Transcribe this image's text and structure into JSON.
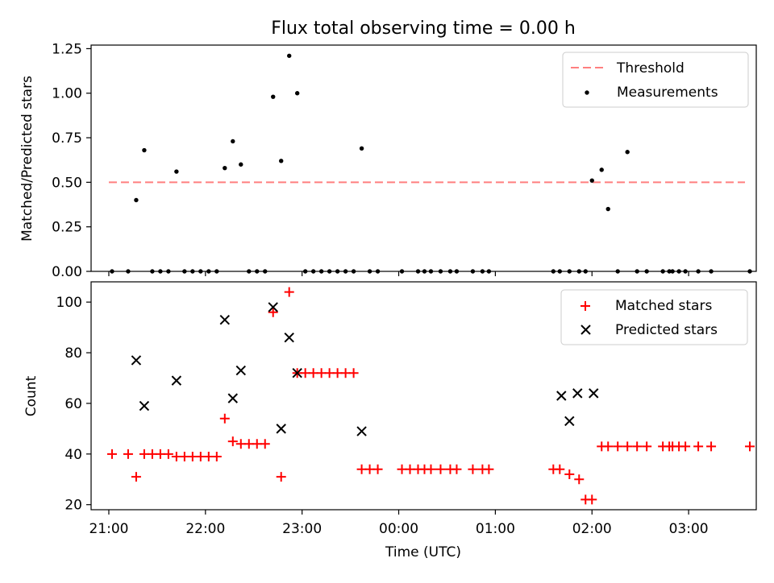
{
  "title": "Flux total observing time = 0.00 h",
  "colors": {
    "threshold": "#ff7f7f",
    "measurement": "#000000",
    "matched": "#ff0000",
    "predicted": "#000000"
  },
  "chart_data": [
    {
      "type": "scatter",
      "title": "Flux total observing time = 0.00 h",
      "xlabel": "",
      "ylabel": "Matched/Predicted stars",
      "xlim": [
        "20:49",
        "03:42"
      ],
      "ylim": [
        0,
        1.27
      ],
      "yticks": [
        "0.00",
        "0.25",
        "0.50",
        "0.75",
        "1.00",
        "1.25"
      ],
      "ytick_values": [
        0,
        0.25,
        0.5,
        0.75,
        1.0,
        1.25
      ],
      "legend_position": "top-right",
      "series": [
        {
          "name": "Threshold",
          "style": "dashed-line",
          "x": [
            "21:00",
            "03:35"
          ],
          "y": [
            0.5,
            0.5
          ]
        },
        {
          "name": "Measurements",
          "style": "dot",
          "x": [
            "21:02",
            "21:12",
            "21:17",
            "21:22",
            "21:27",
            "21:32",
            "21:37",
            "21:42",
            "21:47",
            "21:52",
            "21:57",
            "22:02",
            "22:07",
            "22:12",
            "22:17",
            "22:22",
            "22:27",
            "22:32",
            "22:37",
            "22:42",
            "22:47",
            "22:52",
            "22:57",
            "23:02",
            "23:07",
            "23:12",
            "23:17",
            "23:22",
            "23:27",
            "23:32",
            "23:37",
            "23:42",
            "23:47",
            "24:02",
            "24:12",
            "24:16",
            "24:20",
            "24:26",
            "24:32",
            "24:36",
            "24:46",
            "24:52",
            "24:56",
            "25:36",
            "25:40",
            "25:46",
            "25:52",
            "25:56",
            "26:00",
            "26:06",
            "26:10",
            "26:16",
            "26:22",
            "26:28",
            "26:34",
            "26:44",
            "26:48",
            "26:50",
            "26:54",
            "26:58",
            "27:06",
            "27:14",
            "27:38"
          ],
          "y": [
            0,
            0,
            0.4,
            0.68,
            0,
            0,
            0,
            0.56,
            0,
            0,
            0,
            0,
            0,
            0.58,
            0.73,
            0.6,
            0,
            0,
            0,
            0.98,
            0.62,
            1.21,
            1.0,
            0,
            0,
            0,
            0,
            0,
            0,
            0,
            0.69,
            0,
            0,
            0,
            0,
            0,
            0,
            0,
            0,
            0,
            0,
            0,
            0,
            0,
            0,
            0,
            0,
            0,
            0.51,
            0.57,
            0.35,
            0,
            0.67,
            0,
            0,
            0,
            0,
            0,
            0,
            0,
            0,
            0,
            0
          ]
        }
      ]
    },
    {
      "type": "scatter",
      "xlabel": "Time (UTC)",
      "ylabel": "Count",
      "xlim": [
        "20:49",
        "03:42"
      ],
      "xticks": [
        "21:00",
        "22:00",
        "23:00",
        "00:00",
        "01:00",
        "02:00",
        "03:00"
      ],
      "ylim": [
        18,
        108
      ],
      "yticks": [
        "20",
        "40",
        "60",
        "80",
        "100"
      ],
      "ytick_values": [
        20,
        40,
        60,
        80,
        100
      ],
      "legend_position": "top-right",
      "series": [
        {
          "name": "Matched stars",
          "marker": "+",
          "x": [
            "21:02",
            "21:12",
            "21:17",
            "21:22",
            "21:27",
            "21:32",
            "21:37",
            "21:42",
            "21:47",
            "21:52",
            "21:57",
            "22:02",
            "22:07",
            "22:12",
            "22:17",
            "22:22",
            "22:27",
            "22:32",
            "22:37",
            "22:42",
            "22:47",
            "22:52",
            "22:57",
            "23:02",
            "23:07",
            "23:12",
            "23:17",
            "23:22",
            "23:27",
            "23:32",
            "23:37",
            "23:42",
            "23:47",
            "24:02",
            "24:07",
            "24:12",
            "24:16",
            "24:20",
            "24:26",
            "24:32",
            "24:36",
            "24:46",
            "24:52",
            "24:56",
            "25:36",
            "25:40",
            "25:46",
            "25:52",
            "25:56",
            "26:00",
            "26:06",
            "26:10",
            "26:16",
            "26:22",
            "26:28",
            "26:34",
            "26:44",
            "26:48",
            "26:50",
            "26:54",
            "26:58",
            "27:06",
            "27:14",
            "27:38"
          ],
          "y": [
            40,
            40,
            31,
            40,
            40,
            40,
            40,
            39,
            39,
            39,
            39,
            39,
            39,
            54,
            45,
            44,
            44,
            44,
            44,
            96,
            31,
            104,
            72,
            72,
            72,
            72,
            72,
            72,
            72,
            72,
            34,
            34,
            34,
            34,
            34,
            34,
            34,
            34,
            34,
            34,
            34,
            34,
            34,
            34,
            34,
            34,
            32,
            30,
            22,
            22,
            43,
            43,
            43,
            43,
            43,
            43,
            43,
            43,
            43,
            43,
            43,
            43,
            43,
            43
          ]
        },
        {
          "name": "Predicted stars",
          "marker": "x",
          "x": [
            "21:17",
            "21:22",
            "21:42",
            "22:12",
            "22:17",
            "22:22",
            "22:42",
            "22:47",
            "22:52",
            "22:57",
            "23:37",
            "25:41",
            "25:46",
            "25:51",
            "26:01"
          ],
          "y": [
            77,
            59,
            69,
            93,
            62,
            73,
            98,
            50,
            86,
            72,
            49,
            63,
            53,
            64,
            64
          ]
        }
      ]
    }
  ]
}
